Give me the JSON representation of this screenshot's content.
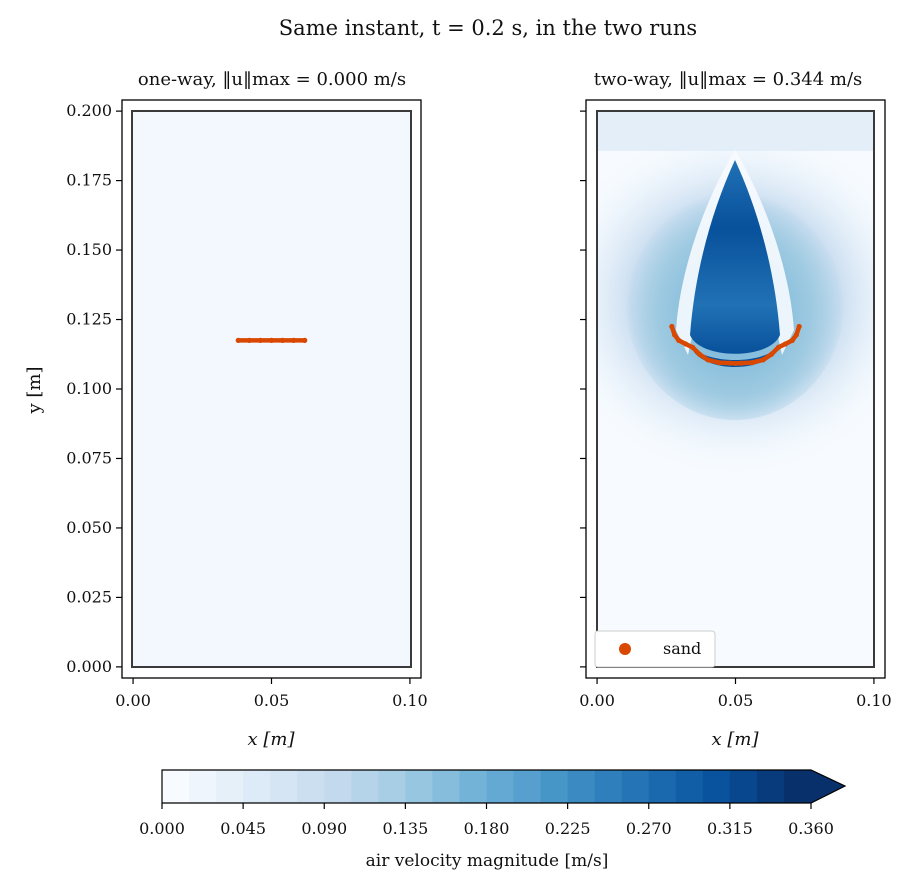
{
  "title": "Same instant, t = 0.2 s, in the two runs",
  "chart_data": [
    {
      "type": "heatmap",
      "title": "one-way, ‖u‖max = 0.000 m/s",
      "xlabel": "x [m]",
      "ylabel": "y [m]",
      "xlim": [
        -0.004,
        0.104
      ],
      "ylim": [
        -0.004,
        0.204
      ],
      "xticks": [
        "0.00",
        "0.05",
        "0.10"
      ],
      "yticks": [
        "0.000",
        "0.025",
        "0.050",
        "0.075",
        "0.100",
        "0.125",
        "0.150",
        "0.175",
        "0.200"
      ],
      "domain_box": {
        "x": [
          0.0,
          0.1
        ],
        "y": [
          0.0,
          0.2
        ]
      },
      "max_speed": 0.0,
      "field": "uniform 0",
      "series": [
        {
          "kind": "sand",
          "x": [
            0.038,
            0.042,
            0.046,
            0.05,
            0.054,
            0.058,
            0.062
          ],
          "y": [
            0.1175,
            0.1175,
            0.1175,
            0.1175,
            0.1175,
            0.1175,
            0.1175
          ]
        }
      ]
    },
    {
      "type": "heatmap",
      "title": "two-way, ‖u‖max = 0.344 m/s",
      "xlabel": "x [m]",
      "xlim": [
        -0.004,
        0.104
      ],
      "ylim": [
        -0.004,
        0.204
      ],
      "xticks": [
        "0.00",
        "0.05",
        "0.10"
      ],
      "domain_box": {
        "x": [
          0.0,
          0.1
        ],
        "y": [
          0.0,
          0.2
        ]
      },
      "max_speed": 0.344,
      "legend": {
        "position": "lower-left",
        "label": "sand"
      },
      "series": [
        {
          "name": "sand",
          "x": [
            0.027,
            0.028,
            0.0295,
            0.032,
            0.0345,
            0.037,
            0.04,
            0.044,
            0.048,
            0.05,
            0.052,
            0.056,
            0.06,
            0.063,
            0.0655,
            0.068,
            0.0705,
            0.072,
            0.073
          ],
          "y": [
            0.1225,
            0.1195,
            0.1175,
            0.1162,
            0.115,
            0.1125,
            0.1105,
            0.1095,
            0.1093,
            0.1092,
            0.1093,
            0.1095,
            0.1105,
            0.1125,
            0.115,
            0.1162,
            0.1175,
            0.1195,
            0.1225
          ]
        }
      ]
    }
  ],
  "colorbar": {
    "label": "air velocity magnitude [m/s]",
    "min": 0.0,
    "max": 0.36,
    "levels": 24,
    "extend": "max",
    "ticks": [
      "0.000",
      "0.045",
      "0.090",
      "0.135",
      "0.180",
      "0.225",
      "0.270",
      "0.315",
      "0.360"
    ],
    "cmap": [
      "#f7fbff",
      "#deebf7",
      "#c6dbef",
      "#9ecae1",
      "#6baed6",
      "#4292c6",
      "#2171b5",
      "#08519c",
      "#08306b"
    ]
  },
  "colors": {
    "sand": "#d94801",
    "box": "#3a3a3a"
  }
}
